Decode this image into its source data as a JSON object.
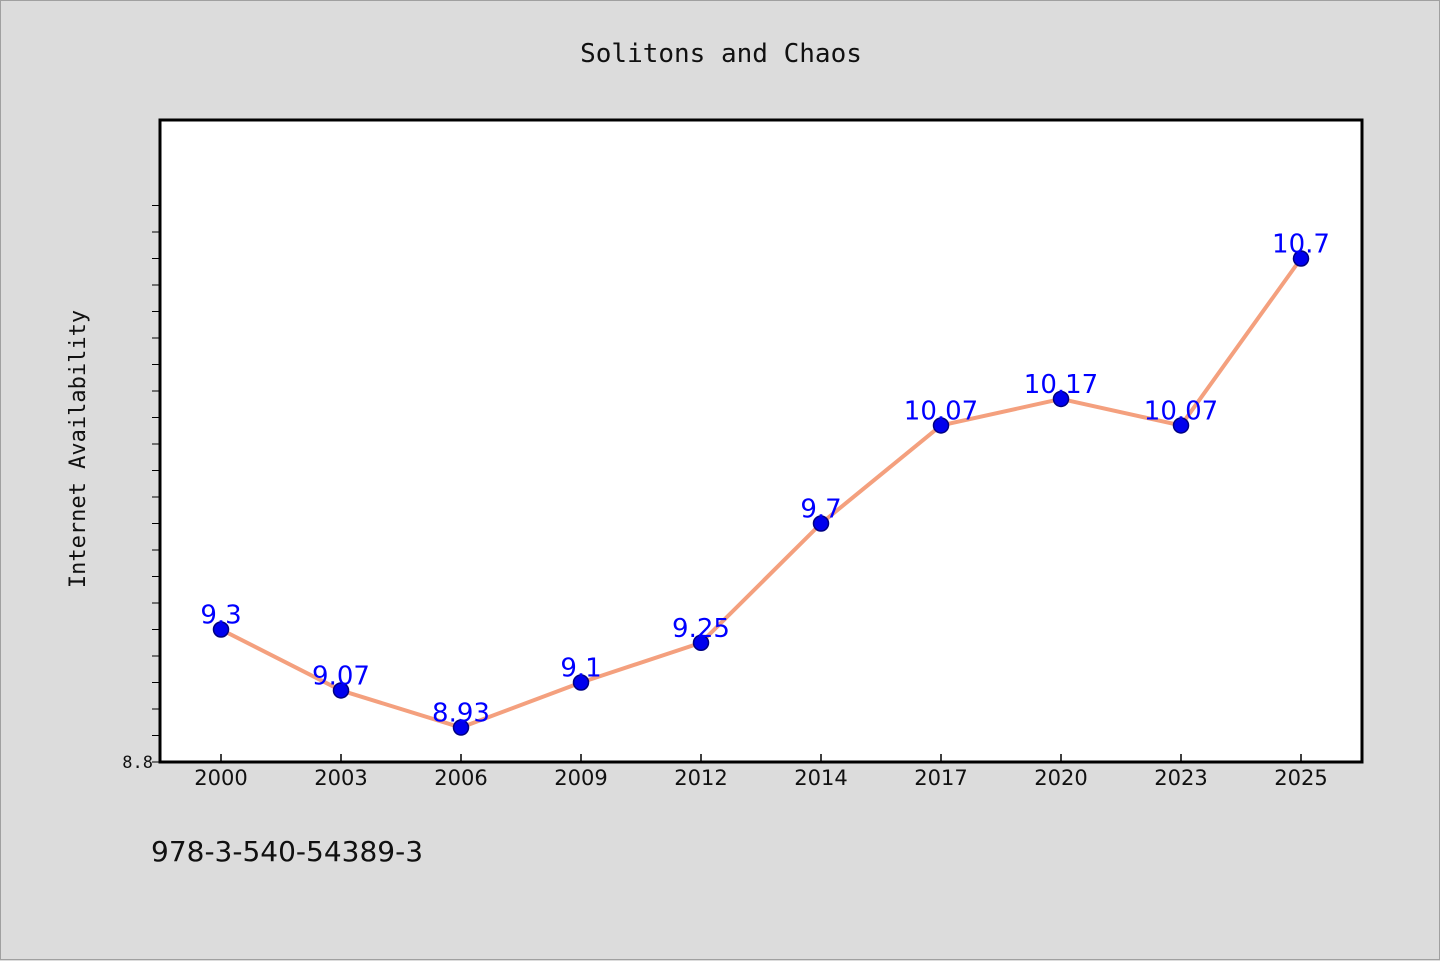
{
  "chart_data": {
    "type": "line",
    "title": "Solitons and Chaos",
    "xlabel": "",
    "ylabel": "Internet Availability",
    "categories": [
      "2000",
      "2003",
      "2006",
      "2009",
      "2012",
      "2014",
      "2017",
      "2020",
      "2023",
      "2025"
    ],
    "series": [
      {
        "values": [
          9.3,
          9.07,
          8.93,
          9.1,
          9.25,
          9.7,
          10.07,
          10.17,
          10.07,
          10.7
        ]
      }
    ],
    "data_labels": [
      "9.3",
      "9.07",
      "8.93",
      "9.1",
      "9.25",
      "9.7",
      "10.07",
      "10.17",
      "10.07",
      "10.7"
    ],
    "y_tick_labels": [
      "8.8"
    ],
    "ylim": [
      8.8,
      11.0
    ],
    "grid": false,
    "legend": "none",
    "colors": {
      "line": "#f4a07e",
      "marker_fill": "#0000ee",
      "marker_edge": "#000080",
      "data_label": "#0000ff",
      "plot_background": "#ffffff",
      "figure_background": "#dcdcdc"
    }
  },
  "footer": {
    "isbn": "978-3-540-54389-3"
  }
}
